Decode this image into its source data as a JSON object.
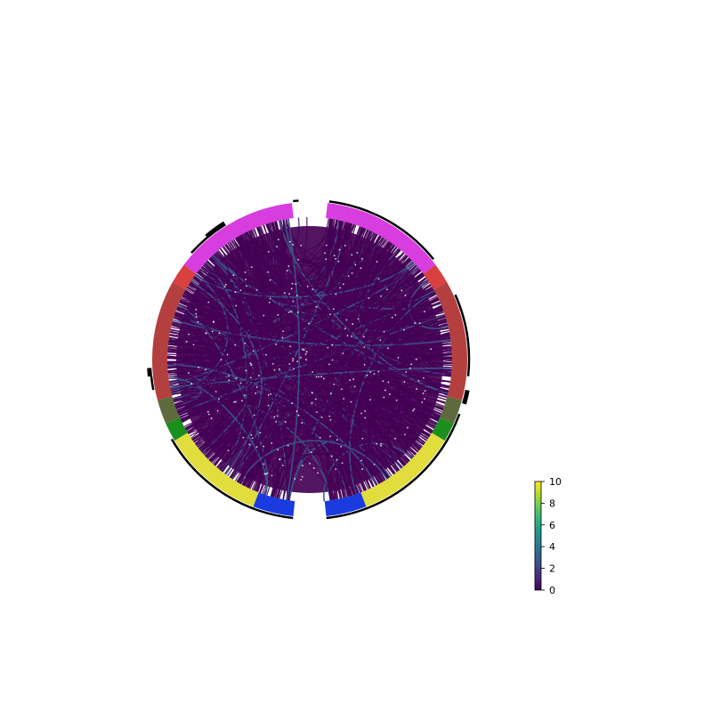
{
  "chart_data": {
    "type": "chord",
    "title": "",
    "hemispheres": [
      {
        "name": "",
        "segments": [
          {
            "color": "#d83ddf",
            "start_deg": -6.5,
            "end_deg": -53
          },
          {
            "color": "#d94040",
            "start_deg": -53,
            "end_deg": -60.5
          },
          {
            "color": "#b43f3f",
            "start_deg": -60.5,
            "end_deg": -105
          },
          {
            "color": "#5e6a3e",
            "start_deg": -105,
            "end_deg": -114
          },
          {
            "color": "#1a8f1e",
            "start_deg": -114,
            "end_deg": -121
          },
          {
            "color": "#e0dd3c",
            "start_deg": -121,
            "end_deg": -159
          },
          {
            "color": "#1a3be0",
            "start_deg": -159,
            "end_deg": -174
          }
        ]
      },
      {
        "name": "",
        "segments": [
          {
            "color": "#d83ddf",
            "start_deg": 6.5,
            "end_deg": 53
          },
          {
            "color": "#d94040",
            "start_deg": 53,
            "end_deg": 60.5
          },
          {
            "color": "#b43f3f",
            "start_deg": 60.5,
            "end_deg": 105
          },
          {
            "color": "#5e6a3e",
            "start_deg": 105,
            "end_deg": 114
          },
          {
            "color": "#1a8f1e",
            "start_deg": 114,
            "end_deg": 121
          },
          {
            "color": "#e0dd3c",
            "start_deg": 121,
            "end_deg": 159
          },
          {
            "color": "#1a3be0",
            "start_deg": 159,
            "end_deg": 174
          }
        ]
      }
    ],
    "outer_black_arcs": [
      {
        "start_deg": 7,
        "end_deg": 25
      },
      {
        "start_deg": 25,
        "end_deg": 51
      },
      {
        "start_deg": 66,
        "end_deg": 96
      },
      {
        "start_deg": 110,
        "end_deg": 152
      },
      {
        "start_deg": 152,
        "end_deg": 174
      },
      {
        "start_deg": -4,
        "end_deg": -6
      },
      {
        "start_deg": -32,
        "end_deg": -48
      },
      {
        "start_deg": -96,
        "end_deg": -101
      },
      {
        "start_deg": -120,
        "end_deg": -174
      }
    ],
    "connection_color_low": "#440154",
    "connection_color_mid": "#3b528b",
    "colorbar": {
      "min": 0,
      "max": 10,
      "ticks": [
        0,
        2,
        4,
        6,
        8,
        10
      ],
      "colormap": [
        "#440154",
        "#482878",
        "#3e4989",
        "#31688e",
        "#26828e",
        "#1f9e89",
        "#35b779",
        "#6ece58",
        "#b5de2b",
        "#fde725"
      ]
    }
  }
}
